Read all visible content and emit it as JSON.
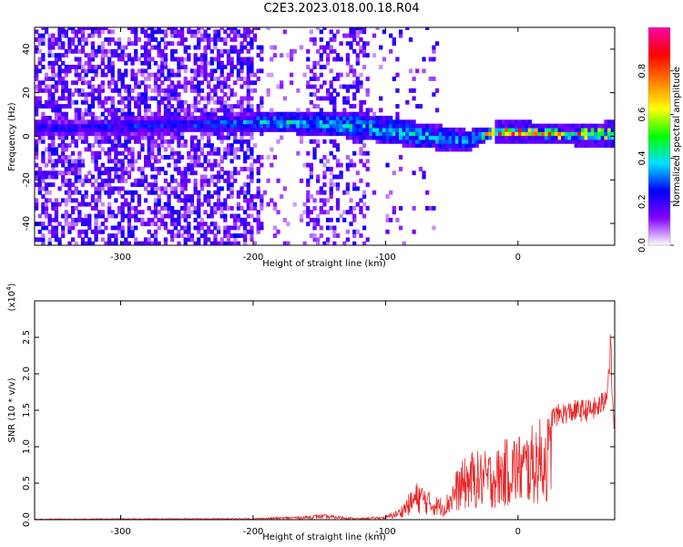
{
  "title": "C2E3.2023.018.00.18.R04",
  "chart_data": [
    {
      "type": "heatmap",
      "xlabel": "Height of straight line (km)",
      "ylabel": "Frequency (Hz)",
      "xlim": [
        -365,
        73
      ],
      "ylim": [
        -50,
        50
      ],
      "xticks": [
        -300,
        -200,
        -100,
        0
      ],
      "yticks": [
        -40,
        -20,
        0,
        20,
        40
      ],
      "colorbar": {
        "label": "Normalized spectral amplitude",
        "range": [
          0.0,
          1.0
        ],
        "ticks": [
          0.0,
          0.2,
          0.4,
          0.6,
          0.8
        ],
        "tick_labels": [
          "0.0",
          "0.2",
          "0.4",
          "0.6",
          "0.8"
        ],
        "colors": [
          "#ffffff",
          "#8000ff",
          "#0000ff",
          "#00e0ff",
          "#00ff00",
          "#ffff00",
          "#ff8000",
          "#ff0000",
          "#ff00aa"
        ]
      },
      "signal_band": [
        {
          "x": -330,
          "f_center": 3,
          "f_halfwidth": 4,
          "amplitude": 0.25
        },
        {
          "x": -230,
          "f_center": 5,
          "f_halfwidth": 4,
          "amplitude": 0.3
        },
        {
          "x": -180,
          "f_center": 6,
          "f_halfwidth": 5,
          "amplitude": 0.4
        },
        {
          "x": -120,
          "f_center": 4,
          "f_halfwidth": 6,
          "amplitude": 0.4
        },
        {
          "x": -80,
          "f_center": 0,
          "f_halfwidth": 6,
          "amplitude": 0.4
        },
        {
          "x": -40,
          "f_center": -3,
          "f_halfwidth": 5,
          "amplitude": 0.35
        },
        {
          "x": -20,
          "f_center": 1,
          "f_halfwidth": 2,
          "amplitude": 0.6
        },
        {
          "x": 0,
          "f_center": 1,
          "f_halfwidth": 2,
          "amplitude": 0.8
        },
        {
          "x": 40,
          "f_center": 0,
          "f_halfwidth": 2,
          "amplitude": 0.6
        },
        {
          "x": 70,
          "f_center": 0,
          "f_halfwidth": 3,
          "amplitude": 0.5
        }
      ]
    },
    {
      "type": "line",
      "xlabel": "Height of straight line (km)",
      "ylabel": "SNR (10 * v/v)",
      "y_multiplier": "(x10",
      "y_multiplier_exp": "4",
      "y_multiplier_close": ")",
      "xlim": [
        -365,
        73
      ],
      "ylim": [
        0.0,
        3.0
      ],
      "xticks": [
        -300,
        -200,
        -100,
        0
      ],
      "yticks": [
        0.0,
        0.5,
        1.0,
        1.5,
        2.0,
        2.5
      ],
      "ytick_labels": [
        "0.0",
        "0.5",
        "1.0",
        "1.5",
        "2.0",
        "2.5"
      ],
      "series": [
        {
          "color": "#e8282a",
          "envelope_x": [
            -365,
            -300,
            -200,
            -160,
            -150,
            -120,
            -100,
            -90,
            -75,
            -65,
            -55,
            -45,
            -35,
            -25,
            -15,
            -5,
            5,
            15,
            25,
            35,
            45,
            55,
            60,
            65,
            68,
            70,
            72
          ],
          "envelope_y": [
            0.01,
            0.015,
            0.02,
            0.05,
            0.08,
            0.02,
            0.05,
            0.15,
            0.55,
            0.35,
            0.3,
            0.75,
            0.95,
            0.95,
            1.0,
            1.2,
            1.2,
            1.38,
            1.48,
            1.54,
            1.57,
            1.58,
            1.62,
            1.7,
            2.0,
            2.5,
            1.4
          ]
        }
      ]
    }
  ]
}
